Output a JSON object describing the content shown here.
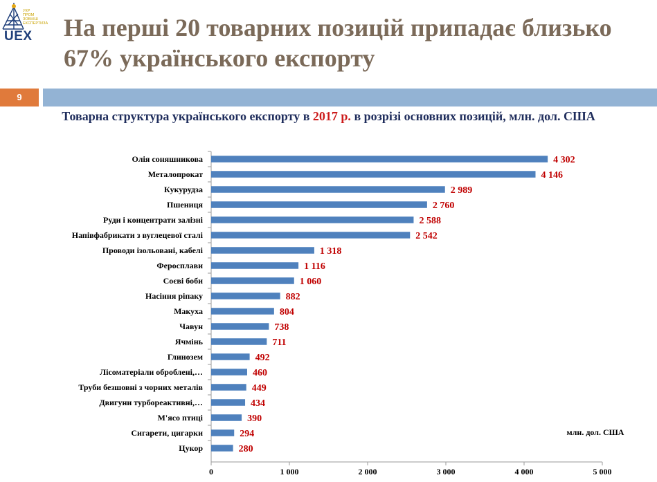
{
  "header": {
    "logo_word": "UEX",
    "logo_small_text": [
      "УКР",
      "ПРОМ",
      "ЗОВНІШ",
      "ЕКСПЕРТИЗА"
    ],
    "title": "На перші 20 товарних позицій припадає близько 67% українського експорту",
    "slide_number": "9"
  },
  "subtitle": {
    "before": "Товарна структура українського експорту в ",
    "year": "2017 р.",
    "after": " в розрізі основних позицій, млн. дол. США"
  },
  "colors": {
    "bar": "#4f81bd",
    "value_label": "#c00000",
    "title": "#7b6a59",
    "subtitle": "#1f2d5c",
    "accent_orange": "#e07a3b",
    "band": "#93b3d4"
  },
  "chart_data": {
    "type": "bar",
    "orientation": "horizontal",
    "categories": [
      "Олія соняшникова",
      "Металопрокат",
      "Кукурудза",
      "Пшениця",
      "Руди і концентрати залізні",
      "Напівфабрикати з вуглецевої сталі",
      "Проводи ізольовані, кабелі",
      "Феросплави",
      "Соєві боби",
      "Насіння ріпаку",
      "Макуха",
      "Чавун",
      "Ячмінь",
      "Глинозем",
      "Лісоматеріали оброблені,…",
      "Труби безшовні з чорних металів",
      "Двигуни турбореактивні,…",
      "М'ясо птиці",
      "Сигарети, цигарки",
      "Цукор"
    ],
    "values": [
      4302,
      4146,
      2989,
      2760,
      2588,
      2542,
      1318,
      1116,
      1060,
      882,
      804,
      738,
      711,
      492,
      460,
      449,
      434,
      390,
      294,
      280
    ],
    "value_labels": [
      "4 302",
      "4 146",
      "2 989",
      "2 760",
      "2 588",
      "2 542",
      "1 318",
      "1 116",
      "1 060",
      "882",
      "804",
      "738",
      "711",
      "492",
      "460",
      "449",
      "434",
      "390",
      "294",
      "280"
    ],
    "xlim": [
      0,
      5000
    ],
    "xticks": [
      0,
      1000,
      2000,
      3000,
      4000,
      5000
    ],
    "xtick_labels": [
      "0",
      "1 000",
      "2 000",
      "3 000",
      "4 000",
      "5 000"
    ],
    "unit_note": "млн. дол. США",
    "grid": false,
    "legend": "none"
  }
}
